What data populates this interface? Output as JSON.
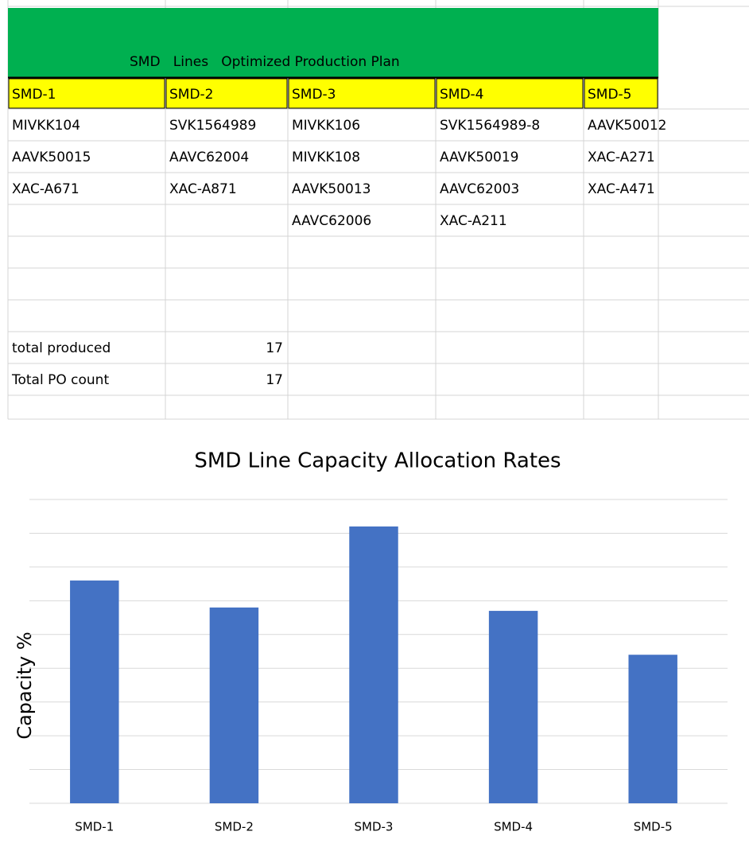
{
  "sheet": {
    "title": "SMD   Lines   Optimized Production Plan",
    "headers": [
      "SMD-1",
      "SMD-2",
      "SMD-3",
      "SMD-4",
      "SMD-5"
    ],
    "rows": [
      [
        "MIVKK104",
        "SVK1564989",
        "MIVKK106",
        "SVK1564989-8",
        "AAVK50012"
      ],
      [
        "AAVK50015",
        "AAVC62004",
        "MIVKK108",
        "AAVK50019",
        "XAC-A271"
      ],
      [
        "XAC-A671",
        "XAC-A871",
        "AAVK50013",
        "AAVC62003",
        "XAC-A471"
      ],
      [
        null,
        null,
        "AAVC62006",
        "XAC-A211",
        null
      ]
    ],
    "summary": [
      {
        "label": "total produced",
        "value": "17"
      },
      {
        "label": "Total PO count",
        "value": "17"
      }
    ]
  },
  "chart_data": {
    "type": "bar",
    "title": "SMD Line Capacity Allocation Rates",
    "y_label": "Capacity %",
    "categories": [
      "SMD-1",
      "SMD-2",
      "SMD-3",
      "SMD-4",
      "SMD-5"
    ],
    "values": [
      66,
      58,
      82,
      57,
      44
    ],
    "color": "#4472c4",
    "ylim": [
      0,
      90
    ],
    "yticks": [
      0,
      10,
      20,
      30,
      40,
      50,
      60,
      70,
      80,
      90
    ],
    "grid": true
  }
}
